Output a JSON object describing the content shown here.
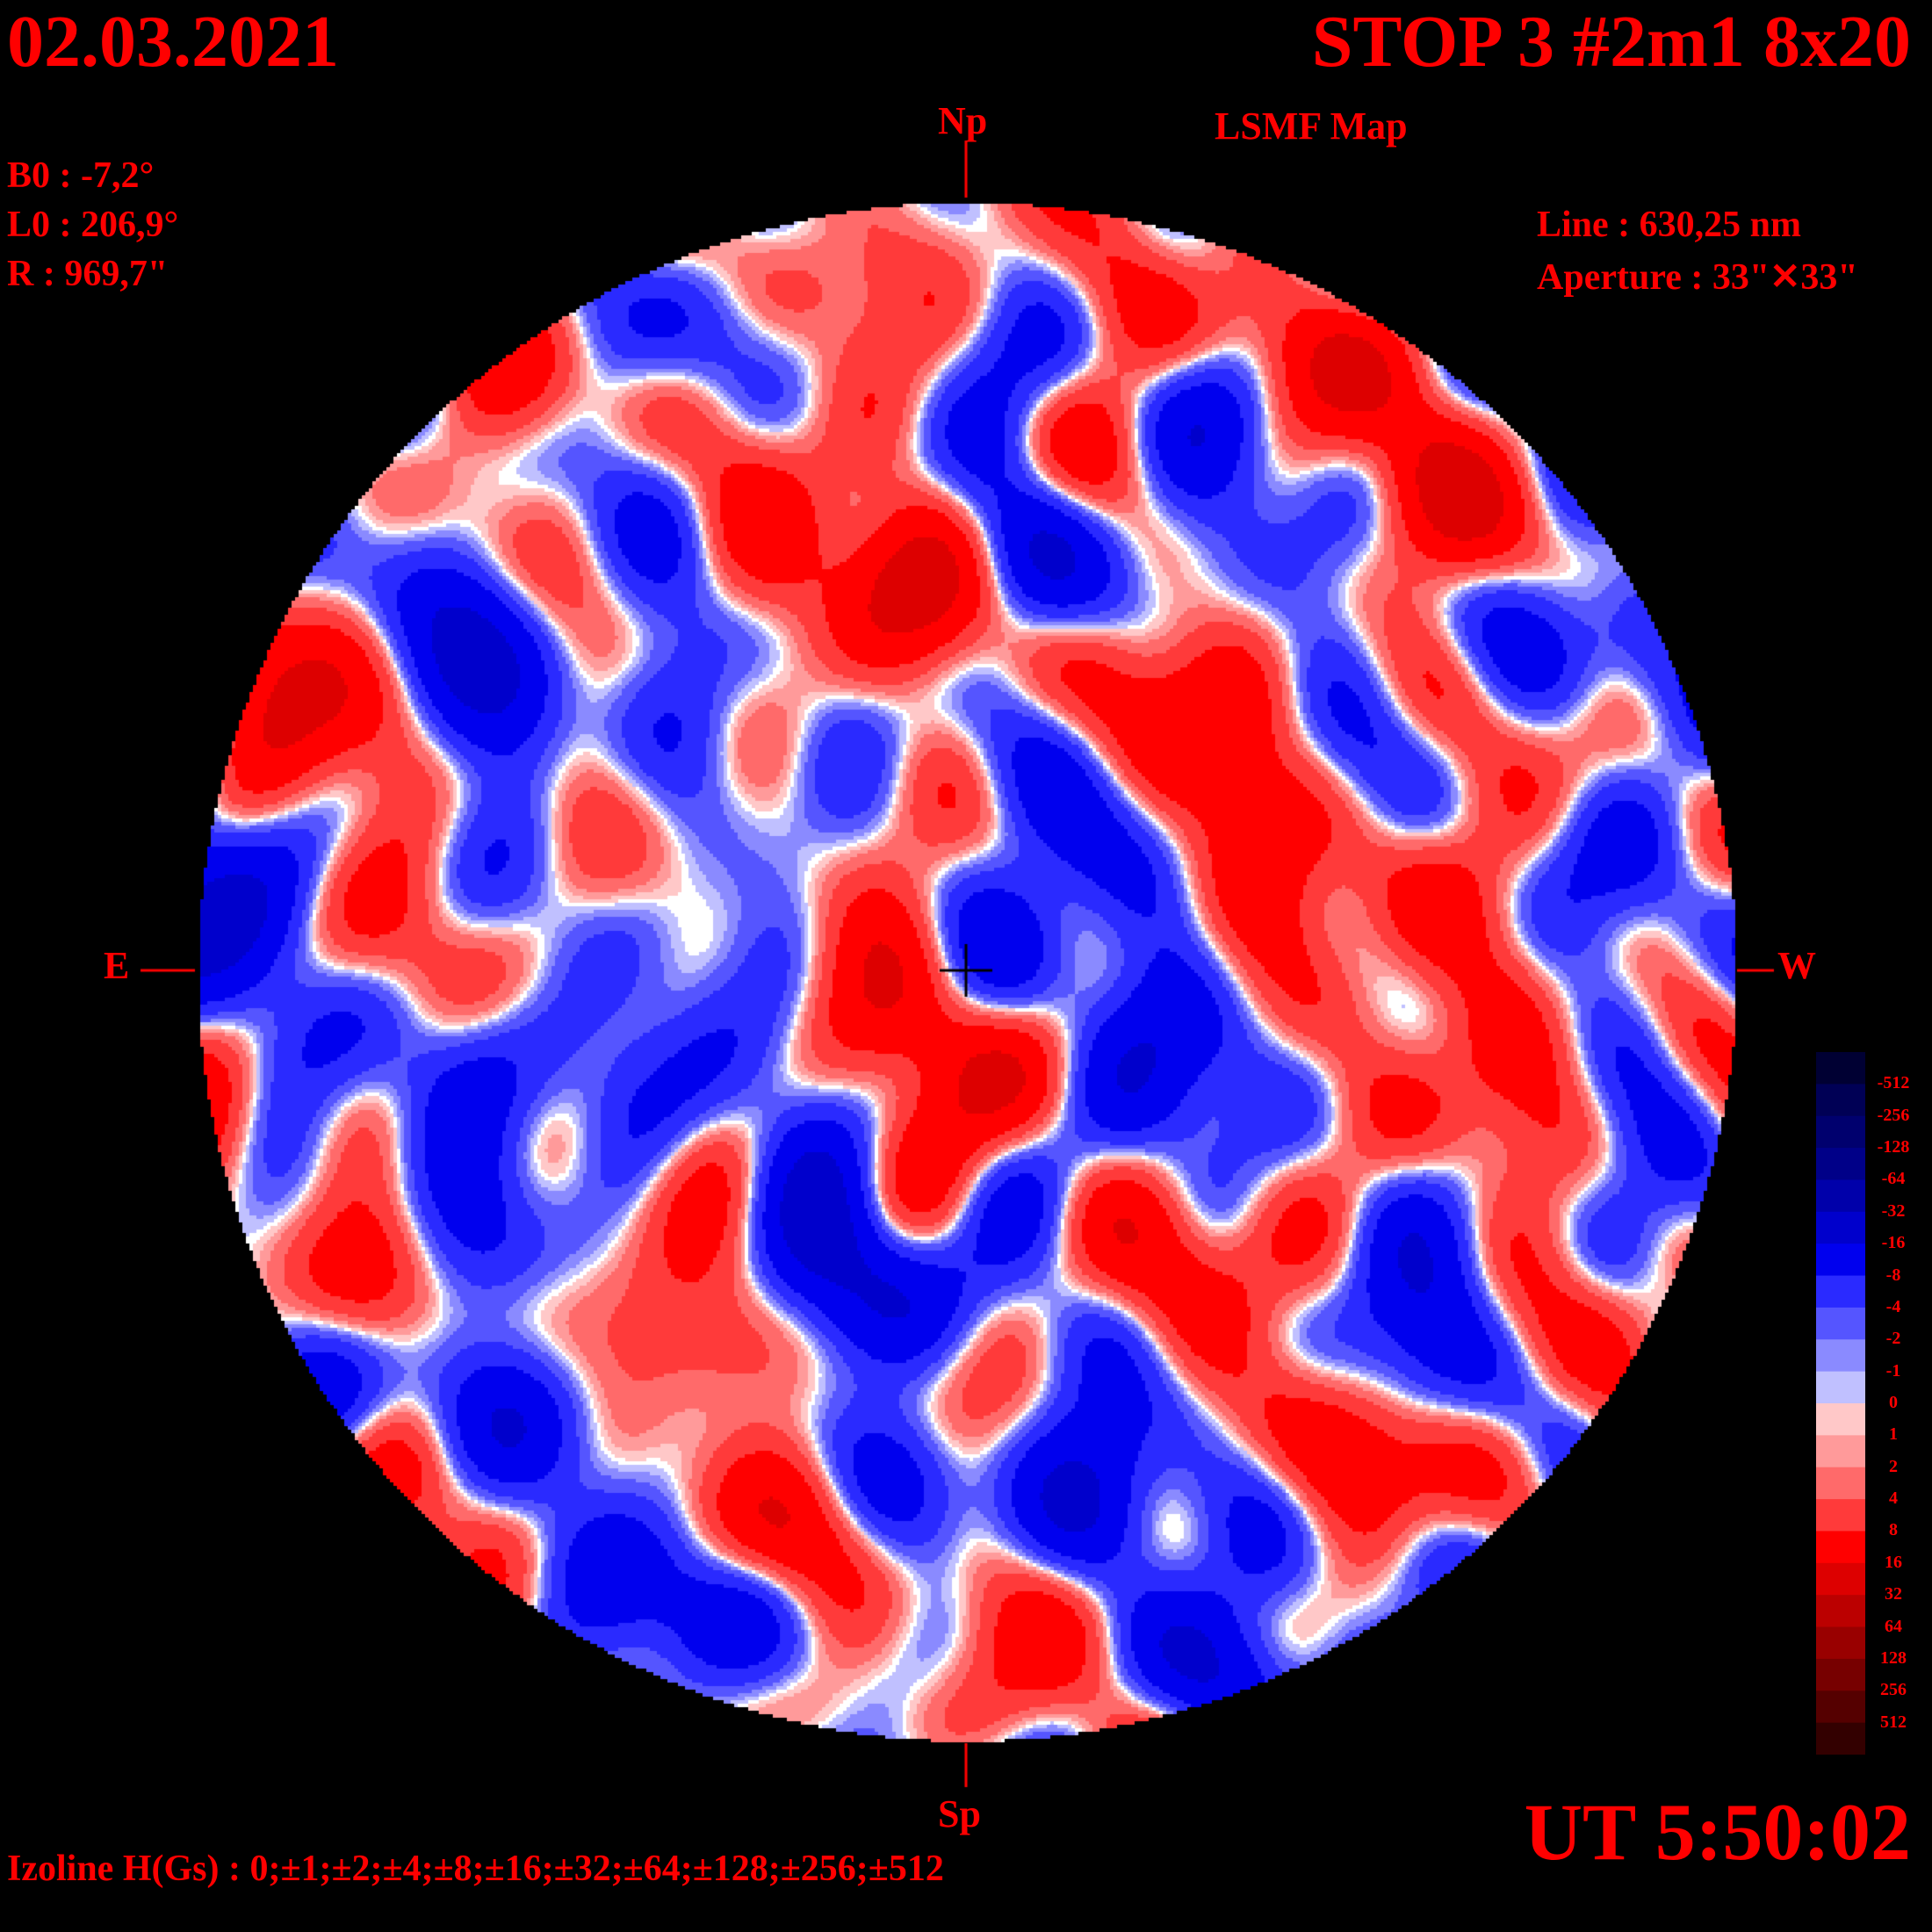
{
  "header": {
    "date": "02.03.2021",
    "stop": "STOP 3 #2m1 8x20",
    "map_type": "LSMF  Map"
  },
  "params": {
    "b0": "B0 : -7,2°",
    "l0": "L0 : 206,9°",
    "radius": "R  : 969,7\"",
    "line": "Line :  630,25 nm",
    "aperture": "Aperture : 33\"✕33\""
  },
  "directions": {
    "north": "Np",
    "south": "Sp",
    "east": "E",
    "west": "W"
  },
  "time": "UT 5:50:02",
  "izoline": "Izoline H(Gs) : 0;±1;±2;±4;±8;±16;±32;±64;±128;±256;±512",
  "colors": {
    "background": "#000000",
    "text": "#ff0000",
    "zero_contour": "#ffffff"
  },
  "chart_data": {
    "type": "heatmap",
    "description_units": "Gs",
    "colorbar": {
      "labels": [
        "-512",
        "-256",
        "-128",
        "-64",
        "-32",
        "-16",
        "-8",
        "-4",
        "-2",
        "-1",
        "0",
        "1",
        "2",
        "4",
        "8",
        "16",
        "32",
        "64",
        "128",
        "256",
        "512"
      ],
      "colors": [
        "#000033",
        "#000055",
        "#00006e",
        "#000088",
        "#0000aa",
        "#0000cc",
        "#0000ee",
        "#2a2aff",
        "#5555ff",
        "#8a8aff",
        "#c0c0ff",
        "#ffc8c8",
        "#ff9a9a",
        "#ff6a6a",
        "#ff3a3a",
        "#ff0000",
        "#dd0000",
        "#bb0000",
        "#990000",
        "#770000",
        "#550000",
        "#330000"
      ]
    }
  }
}
